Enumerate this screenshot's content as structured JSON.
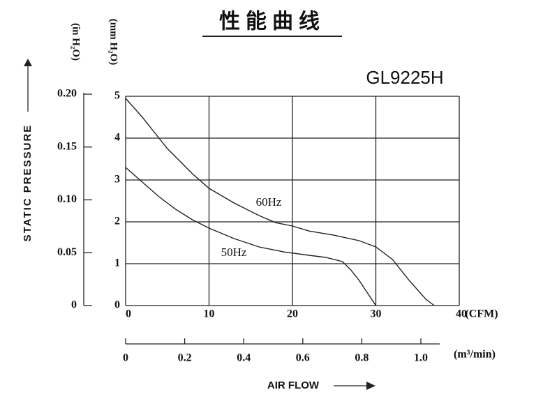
{
  "chart_data": {
    "type": "line",
    "title": "性能曲线",
    "model": "GL9225H",
    "ylabel": "STATIC PRESSURE",
    "xlabel": "AIR FLOW",
    "y_unit": "(mm H₂O)",
    "y2_unit": "(in H₂O)",
    "x_unit": "(CFM)",
    "x2_unit": "(m³/min)",
    "xlim": [
      0,
      40
    ],
    "xticks": [
      0,
      10,
      20,
      30,
      40
    ],
    "ylim": [
      0,
      5
    ],
    "yticks": [
      0,
      1,
      2,
      3,
      4,
      5
    ],
    "y2lim": [
      0,
      0.2
    ],
    "y2ticks": [
      0,
      0.05,
      {
        "value": 0.1,
        "label": "0.10"
      },
      0.15,
      {
        "value": 0.2,
        "label": "0.20"
      }
    ],
    "x2lim": [
      0,
      1.0
    ],
    "x2ticks": [
      0,
      0.2,
      0.4,
      0.6,
      0.8,
      {
        "value": 1.0,
        "label": "1.0"
      }
    ],
    "grid": true,
    "series": [
      {
        "name": "60Hz",
        "color": "#222",
        "x": [
          0,
          2,
          5,
          8,
          10,
          13,
          16,
          18,
          20,
          22,
          25,
          28,
          30,
          32,
          34,
          36,
          37
        ],
        "values": [
          4.95,
          4.5,
          3.75,
          3.15,
          2.8,
          2.45,
          2.15,
          1.98,
          1.9,
          1.78,
          1.68,
          1.55,
          1.4,
          1.1,
          0.6,
          0.15,
          0
        ]
      },
      {
        "name": "50Hz",
        "color": "#222",
        "x": [
          0,
          2,
          4,
          6,
          8,
          10,
          13,
          16,
          19,
          22,
          24,
          26,
          27,
          28,
          29,
          30
        ],
        "values": [
          3.3,
          2.95,
          2.6,
          2.3,
          2.05,
          1.85,
          1.6,
          1.4,
          1.28,
          1.2,
          1.15,
          1.05,
          0.85,
          0.6,
          0.3,
          0
        ]
      }
    ]
  }
}
